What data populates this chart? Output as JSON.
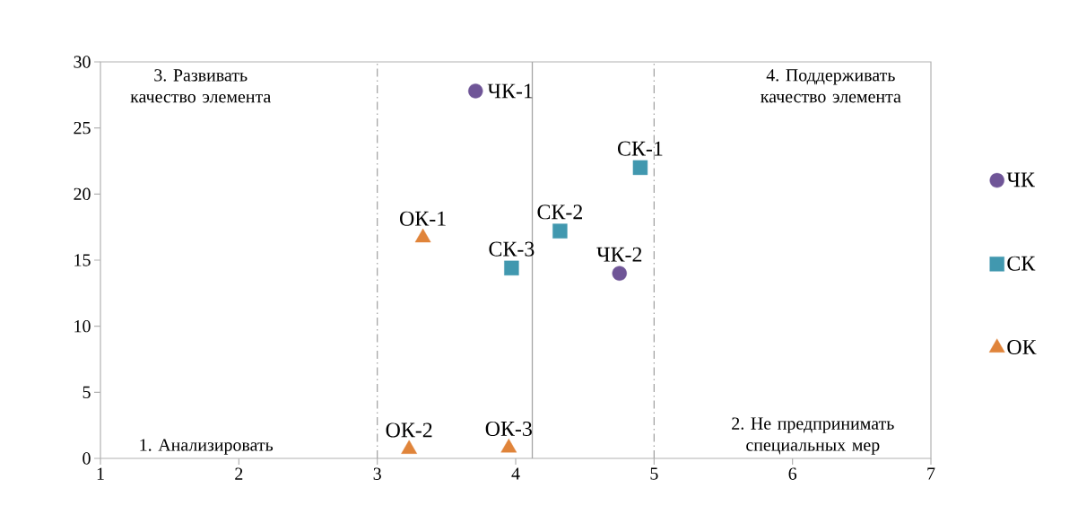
{
  "chart_data": {
    "type": "scatter",
    "xlim": [
      1,
      7
    ],
    "xticks": [
      1,
      2,
      3,
      4,
      5,
      6,
      7
    ],
    "ylim": [
      0,
      30
    ],
    "yticks": [
      0,
      5,
      10,
      15,
      20,
      25,
      30
    ],
    "grid": false,
    "legend": "right",
    "series": [
      {
        "name": "ЧК",
        "color": "#6f5597",
        "marker": "circle",
        "x": [
          3.71,
          4.75
        ],
        "values": [
          27.8,
          14.0
        ],
        "value_labels": [
          "ЧК-1",
          "ЧК-2"
        ]
      },
      {
        "name": "СК",
        "color": "#4198af",
        "marker": "square",
        "x": [
          4.9,
          4.32,
          3.97
        ],
        "values": [
          22.0,
          17.2,
          14.4
        ],
        "value_labels": [
          "СК-1",
          "СК-2",
          "СК-3"
        ]
      },
      {
        "name": "ОК",
        "color": "#e0843a",
        "marker": "triangle",
        "x": [
          3.33,
          3.23,
          3.95
        ],
        "values": [
          16.7,
          0.7,
          0.8
        ],
        "value_labels": [
          "ОК-1",
          "ОК-2",
          "ОК-3"
        ]
      }
    ],
    "ref_lines": [
      {
        "axis": "x",
        "value": 3,
        "color": "#a6a6a6",
        "line_style": "dashed"
      },
      {
        "axis": "x",
        "value": 5,
        "color": "#a6a6a6",
        "line_style": "dashed"
      },
      {
        "axis": "x",
        "value": 4.12,
        "color": "#a6a6a6",
        "line_style": "solid"
      }
    ],
    "annotations": [
      "3. Развивать качество элемента",
      "4. Поддерживать качество элемента",
      "1. Анализировать",
      "2. Не предпринимать специальных мер"
    ]
  }
}
